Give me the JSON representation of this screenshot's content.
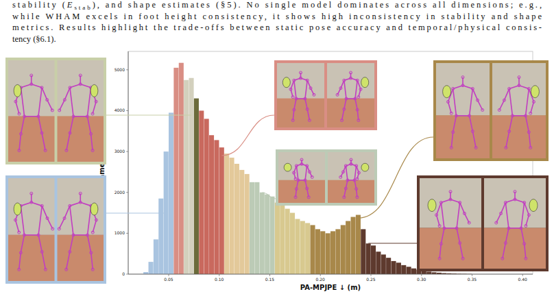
{
  "chart_data": {
    "type": "histogram",
    "caption": {
      "prefix": "stability (",
      "symbol": "E",
      "subscript": "stab",
      "rest_line1": "), and shape estimates (§5). No single model dominates across all dimensions; e.g.,",
      "lines": [
        "while WHAM excels in foot height consistency, it shows high inconsistency in stability and shape",
        "metrics. Results highlight the trade-offs between static pose accuracy and temporal/physical consis-",
        "tency (§6.1)."
      ]
    },
    "x_label": "PA-MPJPE ↓ (m)",
    "y_label": "Frame count",
    "bins": [
      0.025,
      0.03,
      0.035,
      0.04,
      0.045,
      0.05,
      0.055,
      0.06,
      0.065,
      0.07,
      0.075,
      0.08,
      0.085,
      0.09,
      0.095,
      0.1,
      0.105,
      0.11,
      0.115,
      0.12,
      0.125,
      0.13,
      0.135,
      0.14,
      0.145,
      0.15,
      0.155,
      0.16,
      0.165,
      0.17,
      0.175,
      0.18,
      0.185,
      0.19,
      0.195,
      0.2,
      0.205,
      0.21,
      0.215,
      0.22,
      0.225,
      0.23,
      0.235,
      0.24,
      0.245,
      0.25,
      0.255,
      0.26,
      0.265,
      0.27,
      0.275,
      0.28,
      0.285,
      0.29,
      0.295,
      0.3,
      0.305,
      0.31,
      0.315,
      0.32,
      0.325,
      0.33,
      0.335,
      0.34,
      0.345,
      0.35
    ],
    "values": [
      50,
      300,
      850,
      1850,
      3000,
      3950,
      5050,
      5170,
      4750,
      4800,
      4300,
      4000,
      3800,
      3400,
      3280,
      3100,
      2950,
      2850,
      2700,
      2550,
      2450,
      2250,
      2250,
      2000,
      1950,
      1900,
      1750,
      1700,
      1600,
      1500,
      1350,
      1300,
      1250,
      1200,
      1100,
      1050,
      1000,
      1050,
      1100,
      1200,
      1300,
      1400,
      1450,
      1100,
      750,
      700,
      550,
      480,
      400,
      320,
      280,
      220,
      180,
      140,
      110,
      80,
      60,
      45,
      35,
      25,
      20,
      15,
      10,
      8,
      5
    ],
    "colors": [
      "#a9c4e0",
      "#a9c4e0",
      "#a9c4e0",
      "#a9c4e0",
      "#a9c4e0",
      "#a9c4e0",
      "#d98e84",
      "#d98e84",
      "#d3d0bd",
      "#d3d0bd",
      "#6b6b3a",
      "#c9695e",
      "#c9695e",
      "#c9695e",
      "#c9695e",
      "#c9695e",
      "#e3c99a",
      "#e3c99a",
      "#e3c99a",
      "#e3c99a",
      "#e3c99a",
      "#bccbb6",
      "#bccbb6",
      "#bccbb6",
      "#bccbb6",
      "#bccbb6",
      "#d8c98f",
      "#d8c98f",
      "#d8c98f",
      "#d8c98f",
      "#d8c98f",
      "#d8c98f",
      "#d8c98f",
      "#a8884a",
      "#a8884a",
      "#a8884a",
      "#a8884a",
      "#a8884a",
      "#a8884a",
      "#a8884a",
      "#a8884a",
      "#a8884a",
      "#a8884a",
      "#5e3a2e",
      "#5e3a2e",
      "#5e3a2e",
      "#5e3a2e",
      "#5e3a2e",
      "#5e3a2e",
      "#5e3a2e",
      "#5e3a2e",
      "#5e3a2e",
      "#5e3a2e",
      "#5e3a2e",
      "#5e3a2e",
      "#5e3a2e",
      "#5e3a2e",
      "#5e3a2e",
      "#5e3a2e",
      "#5e3a2e",
      "#5e3a2e",
      "#5e3a2e",
      "#5e3a2e",
      "#5e3a2e",
      "#5e3a2e"
    ],
    "xlim": [
      0.01,
      0.41
    ],
    "ylim": [
      0,
      5450
    ],
    "xticks": [
      {
        "value": 0.05,
        "label": "0.05"
      },
      {
        "value": 0.1,
        "label": "0.10"
      },
      {
        "value": 0.15,
        "label": "0.15"
      },
      {
        "value": 0.2,
        "label": "0.20"
      },
      {
        "value": 0.25,
        "label": "0.25"
      },
      {
        "value": 0.3,
        "label": "0.30"
      },
      {
        "value": 0.35,
        "label": "0.35"
      },
      {
        "value": 0.4,
        "label": "0.40"
      }
    ],
    "yticks": [
      0,
      1000,
      2000,
      3000,
      4000,
      5000
    ],
    "grid": false
  }
}
